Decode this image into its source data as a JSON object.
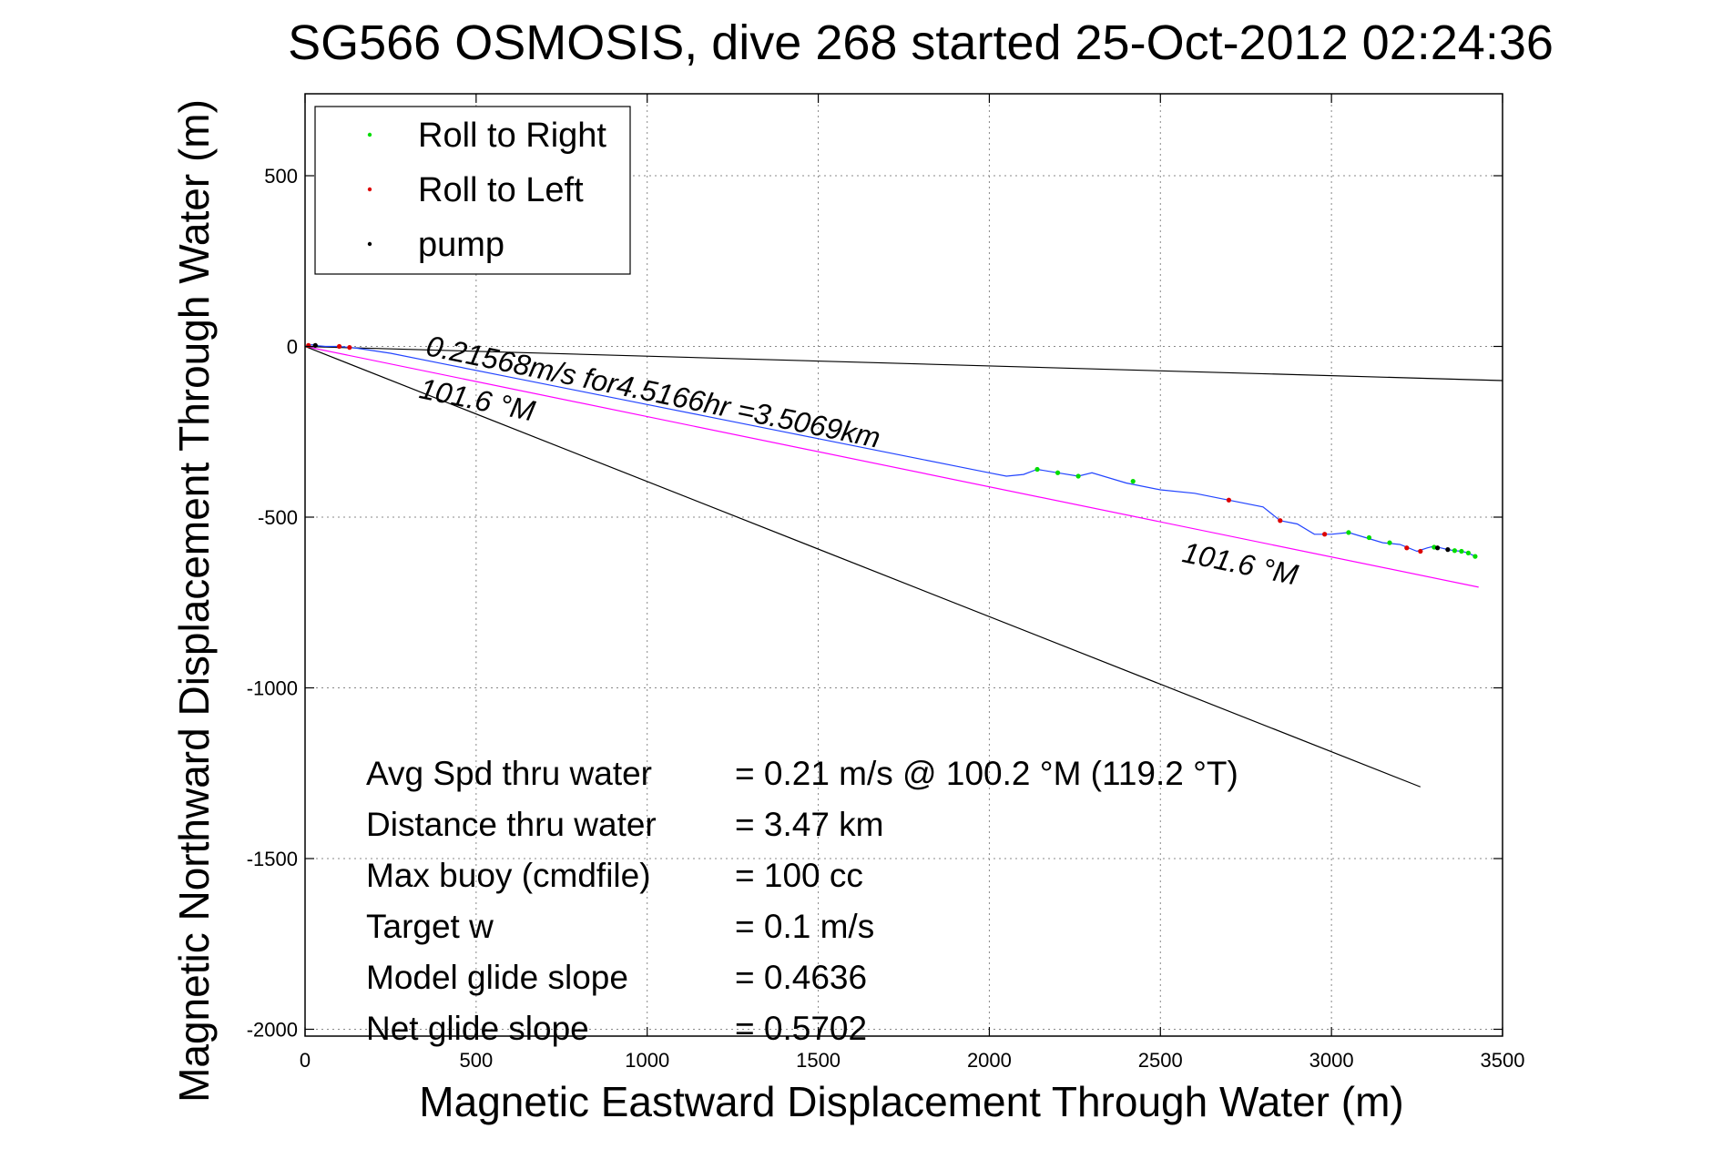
{
  "chart_data": {
    "type": "line",
    "title": "SG566 OSMOSIS, dive 268 started 25-Oct-2012 02:24:36",
    "xlabel": "Magnetic Eastward Displacement Through Water (m)",
    "ylabel": "Magnetic Northward Displacement Through Water (m)",
    "xlim": [
      0,
      3500
    ],
    "ylim": [
      -2020,
      740
    ],
    "xticks": [
      0,
      500,
      1000,
      1500,
      2000,
      2500,
      3000,
      3500
    ],
    "yticks": [
      500,
      0,
      -500,
      -1000,
      -1500,
      -2000
    ],
    "grid": true,
    "legend_position": "top-left",
    "legend": [
      {
        "label": "Roll to Right",
        "color": "#00dd00"
      },
      {
        "label": "Roll to Left",
        "color": "#dd0000"
      },
      {
        "label": "pump",
        "color": "#000000"
      }
    ],
    "track": {
      "color": "#2244ff",
      "x": [
        0,
        20,
        40,
        60,
        100,
        150,
        250,
        400,
        600,
        800,
        1000,
        1200,
        1400,
        1500,
        1600,
        1700,
        1800,
        1900,
        2000,
        2050,
        2100,
        2140,
        2200,
        2260,
        2300,
        2400,
        2500,
        2600,
        2700,
        2800,
        2850,
        2900,
        2950,
        3000,
        3050,
        3100,
        3150,
        3200,
        3250,
        3280,
        3300,
        3320,
        3340,
        3360,
        3380,
        3400,
        3420
      ],
      "y": [
        0,
        5,
        2,
        0,
        0,
        -5,
        -20,
        -50,
        -90,
        -130,
        -170,
        -210,
        -250,
        -270,
        -290,
        -310,
        -330,
        -350,
        -370,
        -380,
        -375,
        -360,
        -370,
        -380,
        -370,
        -400,
        -420,
        -430,
        -450,
        -470,
        -510,
        -520,
        -550,
        -550,
        -545,
        -560,
        -575,
        -580,
        -600,
        -590,
        -585,
        -590,
        -595,
        -598,
        -600,
        -605,
        -615
      ]
    },
    "roll_right_points": {
      "x": [
        2140,
        2200,
        2260,
        2420,
        3050,
        3110,
        3170,
        3300,
        3360,
        3380,
        3400,
        3420
      ],
      "y": [
        -360,
        -370,
        -380,
        -395,
        -545,
        -560,
        -575,
        -588,
        -598,
        -600,
        -605,
        -615
      ]
    },
    "roll_left_points": {
      "x": [
        10,
        100,
        130,
        2700,
        2850,
        2980,
        3220,
        3260
      ],
      "y": [
        3,
        0,
        -3,
        -450,
        -510,
        -550,
        -590,
        -600
      ]
    },
    "pump_points": {
      "x": [
        30,
        3310,
        3340
      ],
      "y": [
        3,
        -590,
        -595
      ]
    },
    "lines": [
      {
        "name": "heading-line-magenta",
        "color": "#ff00ff",
        "x": [
          0,
          3430
        ],
        "y": [
          0,
          -705
        ]
      },
      {
        "name": "heading-line-black-steep",
        "color": "#000000",
        "x": [
          0,
          3260
        ],
        "y": [
          0,
          -1290
        ]
      },
      {
        "name": "heading-line-black-shallow",
        "color": "#000000",
        "x": [
          0,
          3500
        ],
        "y": [
          0,
          -100
        ]
      }
    ],
    "annotations": [
      {
        "text": "0.21568m/s for4.5166hr =3.5069km",
        "x": 350,
        "y": -25,
        "angle": 11.6
      },
      {
        "text": "101.6 °M",
        "x": 330,
        "y": -150,
        "angle": 11.6
      },
      {
        "text": "101.6 °M",
        "x": 2560,
        "y": -630,
        "angle": 11.6
      }
    ],
    "stats": [
      {
        "label": "Avg Spd thru water",
        "value": "=  0.21 m/s @ 100.2 °M (119.2 °T)"
      },
      {
        "label": "Distance thru water",
        "value": "=  3.47 km"
      },
      {
        "label": "Max buoy (cmdfile)",
        "value": "= 100 cc"
      },
      {
        "label": "Target w",
        "value": "= 0.1 m/s"
      },
      {
        "label": "Model glide slope",
        "value": "= 0.4636"
      },
      {
        "label": "Net glide slope",
        "value": "= 0.5702"
      }
    ]
  }
}
